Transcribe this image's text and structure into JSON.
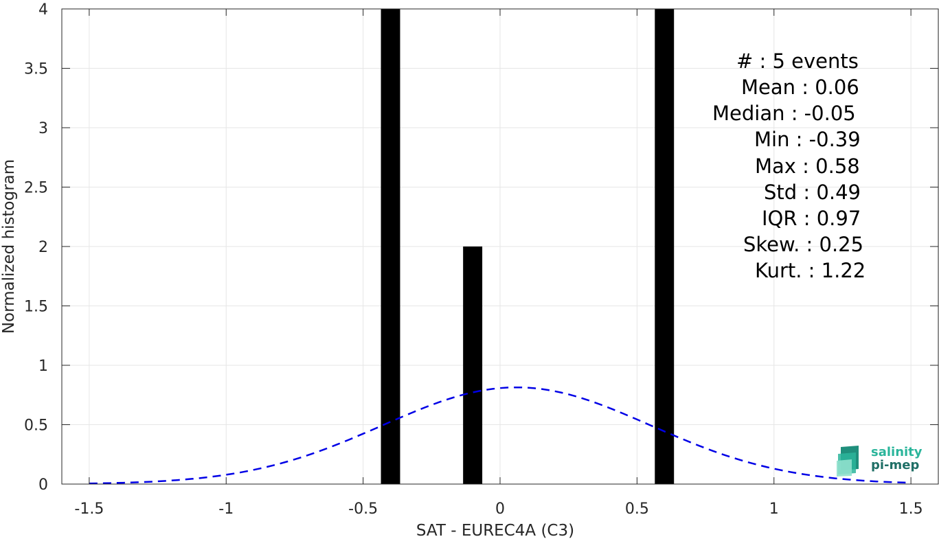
{
  "chart_data": {
    "type": "bar",
    "xlabel": "SAT - EUREC4A (C3)",
    "ylabel": "Normalized histogram",
    "xlim": [
      -1.6,
      1.6
    ],
    "ylim": [
      0,
      4
    ],
    "xticks": [
      -1.5,
      -1,
      -0.5,
      0,
      0.5,
      1,
      1.5
    ],
    "xtick_labels": [
      "-1.5",
      "-1",
      "-0.5",
      "0",
      "0.5",
      "1",
      "1.5"
    ],
    "yticks": [
      0,
      0.5,
      1,
      1.5,
      2,
      2.5,
      3,
      3.5,
      4
    ],
    "ytick_labels": [
      "0",
      "0.5",
      "1",
      "1.5",
      "2",
      "2.5",
      "3",
      "3.5",
      "4"
    ],
    "grid": true,
    "bars": [
      {
        "x": -0.4,
        "width": 0.07,
        "value": 4
      },
      {
        "x": -0.1,
        "width": 0.07,
        "value": 2
      },
      {
        "x": 0.6,
        "width": 0.07,
        "value": 4
      }
    ],
    "fit_curve": {
      "style": "dashed",
      "color": "#0000e6",
      "mean": 0.06,
      "std": 0.49,
      "x_range": [
        -1.5,
        1.5
      ]
    },
    "colors": {
      "bars": "#000000",
      "grid": "#e6e6e6",
      "axes": "#262626"
    }
  },
  "stats": [
    {
      "label": "#  : 5 events"
    },
    {
      "label": "Mean : 0.06"
    },
    {
      "label": "Median : -0.05"
    },
    {
      "label": "Min : -0.39"
    },
    {
      "label": "Max : 0.58"
    },
    {
      "label": "Std : 0.49"
    },
    {
      "label": "IQR : 0.97"
    },
    {
      "label": "Skew. : 0.25"
    },
    {
      "label": "Kurt. : 1.22"
    }
  ],
  "logo": {
    "line1": "salinity",
    "line2": "pi-mep",
    "colors": [
      "#2bb59b",
      "#1f6f66"
    ]
  }
}
